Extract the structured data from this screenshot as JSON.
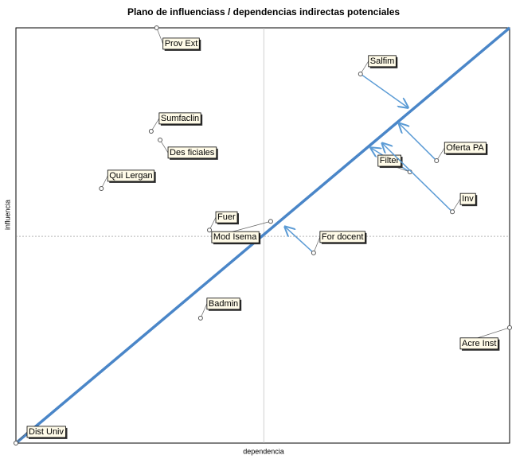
{
  "chart_data": {
    "type": "scatter",
    "title": "Plano de influenciass / dependencias indirectas potenciales",
    "x_label": "dependencia",
    "y_label": "influencia",
    "xlim": [
      0,
      100
    ],
    "ylim": [
      0,
      100
    ],
    "x_mean": 50.2,
    "y_mean": 49.8,
    "diagonal_color": "#4a86c8",
    "arrow_color": "#5b9bd5",
    "point_color": "#555555",
    "points": [
      {
        "label": "Prov Ext",
        "x": 28.5,
        "y": 100
      },
      {
        "label": "Salfim",
        "x": 69.8,
        "y": 88.9,
        "to_x": 79.4,
        "to_y": 80.8
      },
      {
        "label": "Sumfaclin",
        "x": 27.4,
        "y": 75.1
      },
      {
        "label": "Des ficiales",
        "x": 29.2,
        "y": 73.0
      },
      {
        "label": "Qui Lergan",
        "x": 17.3,
        "y": 61.3
      },
      {
        "label": "Oferta PA",
        "x": 85.2,
        "y": 68.0,
        "to_x": 77.6,
        "to_y": 77.0
      },
      {
        "label": "Filter",
        "x": 79.8,
        "y": 65.3,
        "to_x": 71.9,
        "to_y": 71.1
      },
      {
        "label": "Inv",
        "x": 88.4,
        "y": 55.7,
        "to_x": 74.2,
        "to_y": 72.2
      },
      {
        "label": "Fuer",
        "x": 39.2,
        "y": 51.3
      },
      {
        "label": "Mod Isema",
        "x": 51.6,
        "y": 53.4
      },
      {
        "label": "For docent",
        "x": 60.3,
        "y": 45.8,
        "to_x": 54.5,
        "to_y": 52.1
      },
      {
        "label": "Badmin",
        "x": 37.4,
        "y": 30.1
      },
      {
        "label": "Acre Inst",
        "x": 100,
        "y": 27.8
      },
      {
        "label": "Dist Univ",
        "x": 0,
        "y": 0
      }
    ]
  }
}
